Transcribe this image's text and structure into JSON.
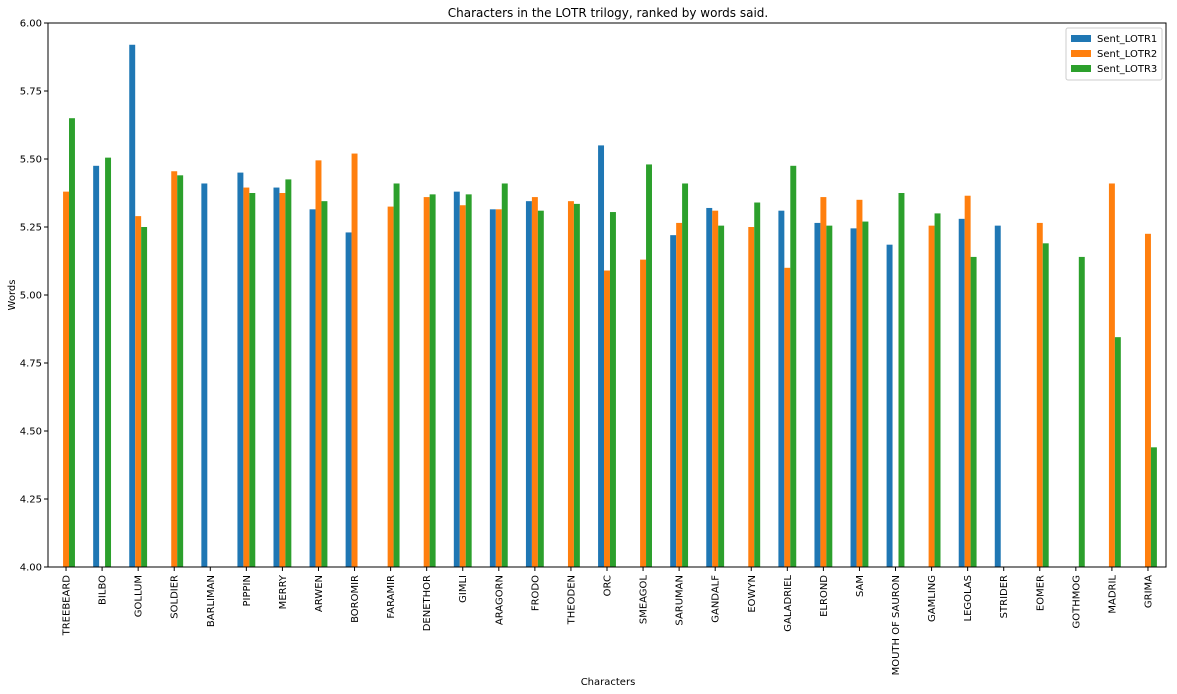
{
  "chart_data": {
    "type": "bar",
    "title": "Characters in the LOTR trilogy, ranked by words said.",
    "xlabel": "Characters",
    "ylabel": "Words",
    "ylim": [
      4.0,
      6.0
    ],
    "yticks": [
      "4.00",
      "4.25",
      "4.50",
      "4.75",
      "5.00",
      "5.25",
      "5.50",
      "5.75",
      "6.00"
    ],
    "ytick_values": [
      4.0,
      4.25,
      4.5,
      4.75,
      5.0,
      5.25,
      5.5,
      5.75,
      6.0
    ],
    "grid": false,
    "legend_position": "top-right",
    "categories": [
      "TREEBEARD",
      "BILBO",
      "GOLLUM",
      "SOLDIER",
      "BARLIMAN",
      "PIPPIN",
      "MERRY",
      "ARWEN",
      "BOROMIR",
      "FARAMIR",
      "DENETHOR",
      "GIMLI",
      "ARAGORN",
      "FRODO",
      "THEODEN",
      "ORC",
      "SMEAGOL",
      "SARUMAN",
      "GANDALF",
      "EOWYN",
      "GALADRIEL",
      "ELROND",
      "SAM",
      "MOUTH OF SAURON",
      "GAMLING",
      "LEGOLAS",
      "STRIDER",
      "EOMER",
      "GOTHMOG",
      "MADRIL",
      "GRIMA"
    ],
    "series": [
      {
        "name": "Sent_LOTR1",
        "color": "#1f77b4",
        "values": [
          null,
          5.475,
          5.92,
          null,
          5.41,
          5.45,
          5.395,
          5.315,
          5.23,
          null,
          null,
          5.38,
          5.315,
          5.345,
          null,
          5.55,
          null,
          5.22,
          5.32,
          null,
          5.31,
          5.265,
          5.245,
          5.185,
          null,
          5.28,
          5.255,
          null,
          null,
          null,
          null
        ]
      },
      {
        "name": "Sent_LOTR2",
        "color": "#ff7f0e",
        "values": [
          5.38,
          null,
          5.29,
          5.455,
          null,
          5.395,
          5.375,
          5.495,
          5.52,
          5.325,
          5.36,
          5.33,
          5.315,
          5.36,
          5.345,
          5.09,
          5.13,
          5.265,
          5.31,
          5.25,
          5.1,
          5.36,
          5.35,
          null,
          5.255,
          5.365,
          null,
          5.265,
          null,
          5.41,
          5.225
        ]
      },
      {
        "name": "Sent_LOTR3",
        "color": "#2ca02c",
        "values": [
          5.65,
          5.505,
          5.25,
          5.44,
          null,
          5.375,
          5.425,
          5.345,
          null,
          5.41,
          5.37,
          5.37,
          5.41,
          5.31,
          5.335,
          5.305,
          5.48,
          5.41,
          5.255,
          5.34,
          5.475,
          5.255,
          5.27,
          5.375,
          5.3,
          5.14,
          null,
          5.19,
          5.14,
          4.845,
          4.44
        ]
      }
    ]
  }
}
